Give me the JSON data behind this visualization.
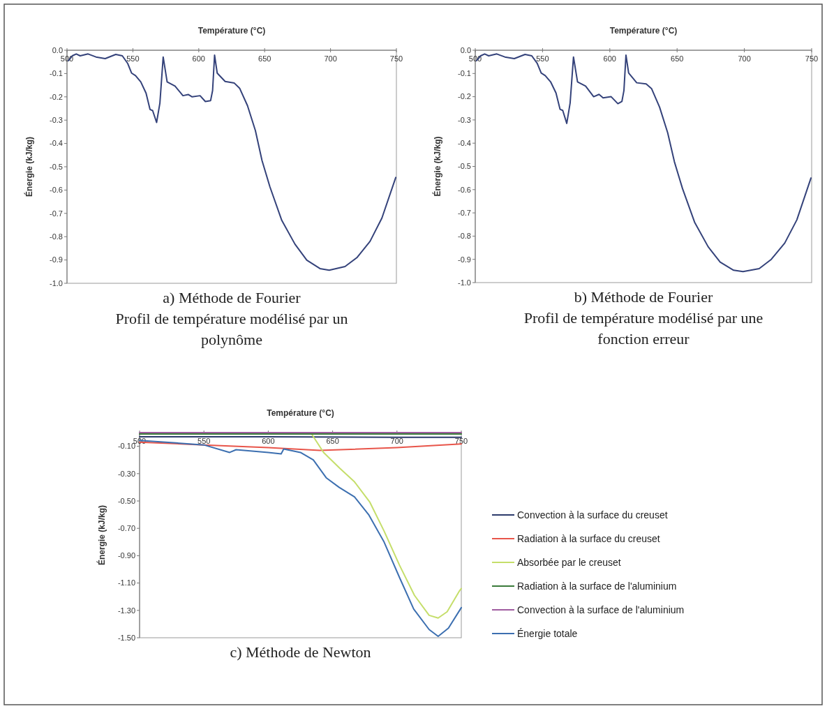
{
  "chart_data": [
    {
      "type": "line",
      "title": "a) Méthode de Fourier",
      "subtitle": "Profil de température modélisé par un polynôme",
      "xlabel": "Température (°C)",
      "ylabel": "Énergie (kJ/kg)",
      "xlim": [
        500,
        750
      ],
      "xticks": [
        500,
        550,
        600,
        650,
        700,
        750
      ],
      "ylim": [
        -1.0,
        0.0
      ],
      "yticks": [
        {
          "value": 0,
          "label": "0.0"
        },
        {
          "value": -0.1,
          "label": "-0.1"
        },
        {
          "value": -0.2,
          "label": "-0.2"
        },
        {
          "value": -0.3,
          "label": "-0.3"
        },
        {
          "value": -0.4,
          "label": "-0.4"
        },
        {
          "value": -0.5,
          "label": "-0.5"
        },
        {
          "value": -0.6,
          "label": "-0.6"
        },
        {
          "value": -0.7,
          "label": "-0.7"
        },
        {
          "value": -0.8,
          "label": "-0.8"
        },
        {
          "value": -0.9,
          "label": "-0.9"
        },
        {
          "value": -1.0,
          "label": "-1.0"
        }
      ],
      "grid": false,
      "legend": false,
      "series": [
        {
          "color": "#34427a",
          "x": [
            501,
            504,
            507,
            510,
            516,
            522,
            529,
            537,
            542,
            546,
            549,
            552,
            556,
            560,
            563,
            565,
            568,
            570.5,
            573,
            576,
            582,
            588,
            592,
            595,
            601,
            605,
            609,
            610.5,
            612,
            614,
            620,
            627,
            631,
            637,
            643,
            648,
            654,
            663,
            673,
            682,
            692,
            699,
            711,
            720,
            730,
            739,
            749.5
          ],
          "values": [
            -0.045,
            -0.024,
            -0.016,
            -0.024,
            -0.016,
            -0.029,
            -0.036,
            -0.018,
            -0.024,
            -0.056,
            -0.098,
            -0.109,
            -0.136,
            -0.184,
            -0.254,
            -0.259,
            -0.31,
            -0.227,
            -0.029,
            -0.136,
            -0.154,
            -0.195,
            -0.19,
            -0.2,
            -0.195,
            -0.22,
            -0.216,
            -0.173,
            -0.021,
            -0.098,
            -0.134,
            -0.141,
            -0.163,
            -0.238,
            -0.345,
            -0.473,
            -0.586,
            -0.73,
            -0.832,
            -0.901,
            -0.937,
            -0.944,
            -0.928,
            -0.89,
            -0.82,
            -0.72,
            -0.546
          ]
        }
      ]
    },
    {
      "type": "line",
      "title": "b) Méthode de Fourier",
      "subtitle": "Profil de température modélisé par une fonction erreur",
      "xlabel": "Température (°C)",
      "ylabel": "Énergie (kJ/kg)",
      "xlim": [
        500,
        750
      ],
      "xticks": [
        500,
        550,
        600,
        650,
        700,
        750
      ],
      "ylim": [
        -1.0,
        0.0
      ],
      "yticks": [
        {
          "value": 0,
          "label": "0.0"
        },
        {
          "value": -0.1,
          "label": "-0.1"
        },
        {
          "value": -0.2,
          "label": "-0.2"
        },
        {
          "value": -0.3,
          "label": "-0.3"
        },
        {
          "value": -0.4,
          "label": "-0.4"
        },
        {
          "value": -0.5,
          "label": "-0.5"
        },
        {
          "value": -0.6,
          "label": "-0.6"
        },
        {
          "value": -0.7,
          "label": "-0.7"
        },
        {
          "value": -0.8,
          "label": "-0.8"
        },
        {
          "value": -0.9,
          "label": "-0.9"
        },
        {
          "value": -1.0,
          "label": "-1.0"
        }
      ],
      "grid": false,
      "legend": false,
      "series": [
        {
          "color": "#34427a",
          "x": [
            501,
            504,
            507,
            510,
            516,
            522,
            529,
            537,
            542,
            546,
            549,
            552,
            556,
            560,
            563,
            565,
            568,
            570.5,
            573,
            576,
            582,
            588,
            592,
            595,
            601,
            606,
            609,
            610.5,
            612,
            614,
            620,
            627,
            631,
            637,
            643,
            648,
            654,
            663,
            673,
            682,
            692,
            699,
            711,
            720,
            730,
            739,
            749.5
          ],
          "values": [
            -0.045,
            -0.024,
            -0.016,
            -0.024,
            -0.016,
            -0.029,
            -0.036,
            -0.018,
            -0.024,
            -0.056,
            -0.098,
            -0.109,
            -0.136,
            -0.184,
            -0.254,
            -0.259,
            -0.315,
            -0.227,
            -0.029,
            -0.136,
            -0.154,
            -0.2,
            -0.19,
            -0.205,
            -0.2,
            -0.23,
            -0.22,
            -0.173,
            -0.021,
            -0.098,
            -0.14,
            -0.145,
            -0.165,
            -0.245,
            -0.355,
            -0.48,
            -0.595,
            -0.74,
            -0.845,
            -0.912,
            -0.947,
            -0.953,
            -0.94,
            -0.9,
            -0.83,
            -0.73,
            -0.55
          ]
        }
      ]
    },
    {
      "type": "line",
      "title": "c) Méthode de Newton",
      "xlabel": "Température (°C)",
      "ylabel": "Énergie (kJ/kg)",
      "xlim": [
        500,
        750
      ],
      "xticks": [
        500,
        550,
        600,
        650,
        700,
        750
      ],
      "ylim": [
        -1.5,
        0.0
      ],
      "yticks": [
        {
          "value": -0.1,
          "label": "-0.10"
        },
        {
          "value": -0.3,
          "label": "-0.30"
        },
        {
          "value": -0.5,
          "label": "-0.50"
        },
        {
          "value": -0.7,
          "label": "-0.70"
        },
        {
          "value": -0.9,
          "label": "-0.90"
        },
        {
          "value": -1.1,
          "label": "-1.10"
        },
        {
          "value": -1.3,
          "label": "-1.30"
        },
        {
          "value": -1.5,
          "label": "-1.50"
        }
      ],
      "grid": false,
      "legend": "right",
      "series": [
        {
          "name": "Convection à la surface du creuset",
          "color": "#2b3a6b",
          "x": [
            500,
            600,
            700,
            750
          ],
          "values": [
            -0.03,
            -0.03,
            -0.035,
            -0.035
          ]
        },
        {
          "name": "Radiation à la surface du creuset",
          "color": "#e8554a",
          "x": [
            500,
            550,
            600,
            640,
            700,
            750
          ],
          "values": [
            -0.07,
            -0.09,
            -0.11,
            -0.13,
            -0.11,
            -0.083
          ]
        },
        {
          "name": "Absorbée par le creuset",
          "color": "#c5de6a",
          "x": [
            633,
            643,
            655.5,
            667,
            679,
            690,
            702,
            713.6,
            725,
            732,
            739,
            748.6,
            750
          ],
          "values": [
            0,
            -0.145,
            -0.26,
            -0.36,
            -0.51,
            -0.72,
            -0.97,
            -1.19,
            -1.336,
            -1.356,
            -1.31,
            -1.157,
            -1.14
          ]
        },
        {
          "name": "Radiation à la surface de l'aluminium",
          "color": "#3a7a3a",
          "x": [
            500,
            750
          ],
          "values": [
            -0.01,
            -0.01
          ]
        },
        {
          "name": "Convection à la surface de l'aluminium",
          "color": "#a05ca0",
          "x": [
            500,
            750
          ],
          "values": [
            0,
            0
          ]
        },
        {
          "name": "Énergie totale",
          "color": "#3c6fb0",
          "x": [
            500,
            550,
            570,
            575,
            600,
            610,
            612,
            625,
            635,
            645,
            655,
            667,
            678,
            690,
            702,
            713,
            725,
            732,
            740,
            750
          ],
          "values": [
            -0.057,
            -0.09,
            -0.145,
            -0.125,
            -0.145,
            -0.156,
            -0.12,
            -0.145,
            -0.2,
            -0.33,
            -0.4,
            -0.47,
            -0.6,
            -0.8,
            -1.06,
            -1.29,
            -1.44,
            -1.49,
            -1.43,
            -1.28
          ]
        }
      ]
    }
  ]
}
